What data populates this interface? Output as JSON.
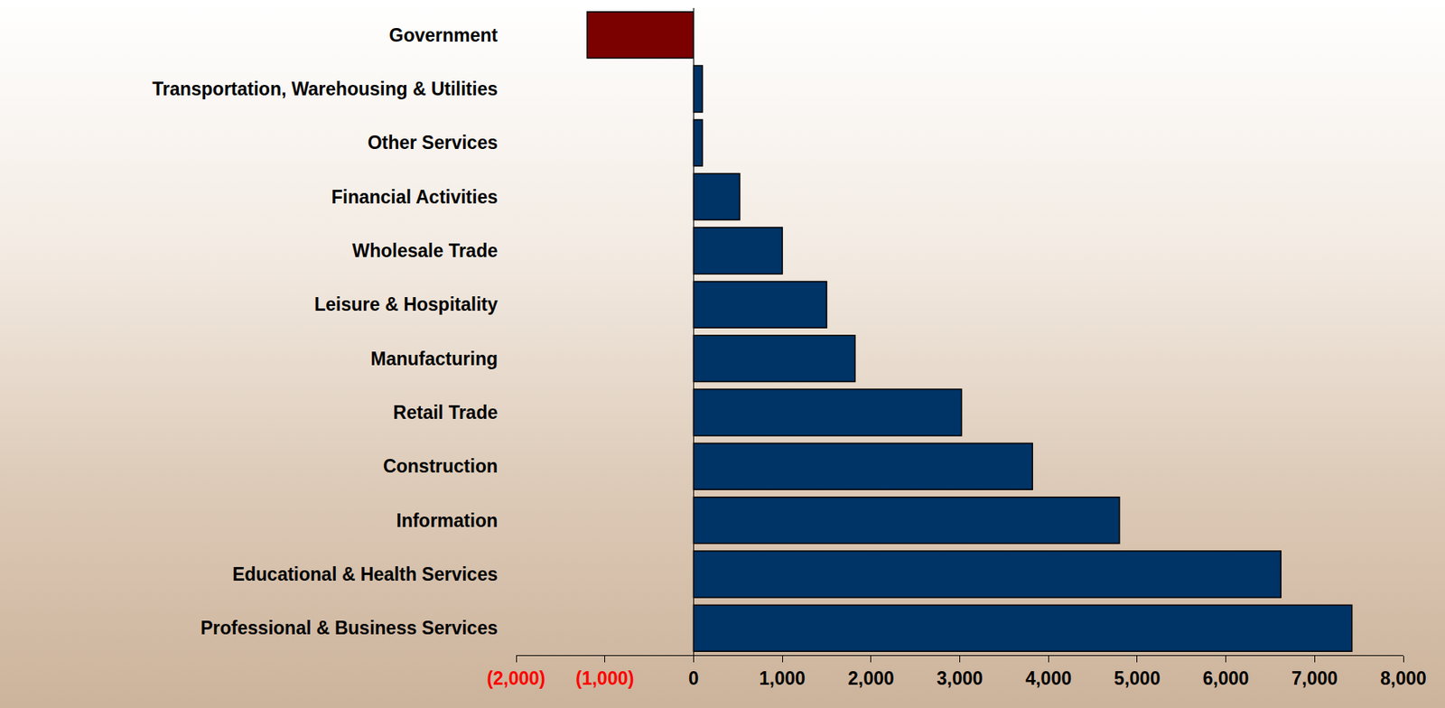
{
  "chart_data": {
    "type": "bar",
    "orientation": "horizontal",
    "categories": [
      "Government",
      "Transportation, Warehousing & Utilities",
      "Other Services",
      "Financial Activities",
      "Wholesale Trade",
      "Leisure & Hospitality",
      "Manufacturing",
      "Retail Trade",
      "Construction",
      "Information",
      "Educational & Health Services",
      "Professional & Business Services"
    ],
    "values": [
      -1200,
      100,
      100,
      520,
      1000,
      1500,
      1820,
      3020,
      3820,
      4800,
      6620,
      7420
    ],
    "colors": [
      "#7b0000",
      "#003366",
      "#003366",
      "#003366",
      "#003366",
      "#003366",
      "#003366",
      "#003366",
      "#003366",
      "#003366",
      "#003366",
      "#003366"
    ],
    "xlim": [
      -2000,
      8000
    ],
    "xticks": [
      {
        "value": -2000,
        "label": "(2,000)"
      },
      {
        "value": -1000,
        "label": "(1,000)"
      },
      0,
      {
        "value": 1000,
        "label": "1,000"
      },
      {
        "value": 2000,
        "label": "2,000"
      },
      {
        "value": 3000,
        "label": "3,000"
      },
      {
        "value": 4000,
        "label": "4,000"
      },
      {
        "value": 5000,
        "label": "5,000"
      },
      {
        "value": 6000,
        "label": "6,000"
      },
      {
        "value": 7000,
        "label": "7,000"
      },
      {
        "value": 8000,
        "label": "8,000"
      }
    ],
    "grid": false
  }
}
